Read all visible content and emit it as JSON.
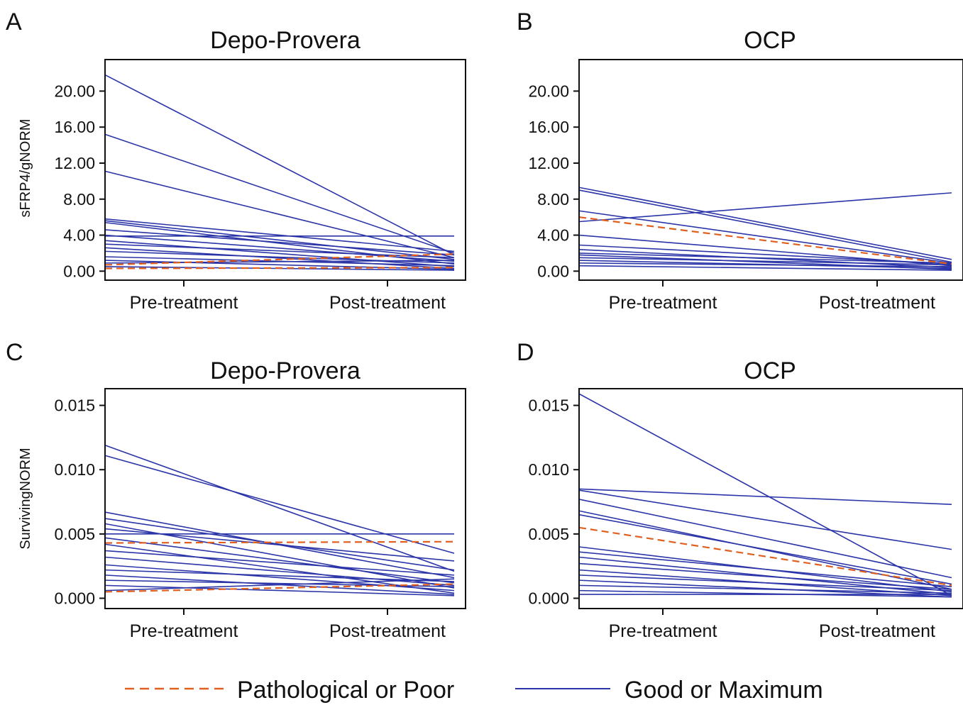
{
  "legend": {
    "items": [
      {
        "label": "Pathological or Poor",
        "style": "dashed",
        "color": "#e06020"
      },
      {
        "label": "Good or Maximum",
        "style": "solid",
        "color": "#2b35a8"
      }
    ]
  },
  "chart_data": [
    {
      "type": "line",
      "panel_letter": "A",
      "title": "Depo-Provera",
      "ylabel": "sFRP4/gNORM",
      "xlabel": "",
      "categories": [
        "Pre-treatment",
        "Post-treatment"
      ],
      "ylim": [
        -1.0,
        23.5
      ],
      "yticks": [
        "0.00",
        "4.00",
        "8.00",
        "12.00",
        "16.00",
        "20.00"
      ],
      "grid": false,
      "series": [
        {
          "group": "Good or Maximum",
          "values": [
            21.8,
            1.8
          ]
        },
        {
          "group": "Good or Maximum",
          "values": [
            15.2,
            2.0
          ]
        },
        {
          "group": "Good or Maximum",
          "values": [
            11.1,
            1.5
          ]
        },
        {
          "group": "Good or Maximum",
          "values": [
            5.8,
            2.2
          ]
        },
        {
          "group": "Good or Maximum",
          "values": [
            5.6,
            1.3
          ]
        },
        {
          "group": "Good or Maximum",
          "values": [
            5.4,
            0.8
          ]
        },
        {
          "group": "Good or Maximum",
          "values": [
            4.6,
            1.8
          ]
        },
        {
          "group": "Good or Maximum",
          "values": [
            4.0,
            1.1
          ]
        },
        {
          "group": "Good or Maximum",
          "values": [
            3.9,
            3.9
          ]
        },
        {
          "group": "Good or Maximum",
          "values": [
            3.4,
            0.5
          ]
        },
        {
          "group": "Good or Maximum",
          "values": [
            3.0,
            1.5
          ]
        },
        {
          "group": "Good or Maximum",
          "values": [
            2.6,
            0.3
          ]
        },
        {
          "group": "Good or Maximum",
          "values": [
            2.2,
            0.9
          ]
        },
        {
          "group": "Good or Maximum",
          "values": [
            1.6,
            0.6
          ]
        },
        {
          "group": "Good or Maximum",
          "values": [
            1.2,
            0.2
          ]
        },
        {
          "group": "Good or Maximum",
          "values": [
            0.9,
            1.2
          ]
        },
        {
          "group": "Good or Maximum",
          "values": [
            0.5,
            0.1
          ]
        },
        {
          "group": "Pathological or Poor",
          "values": [
            0.7,
            1.9
          ]
        },
        {
          "group": "Pathological or Poor",
          "values": [
            0.3,
            0.4
          ]
        }
      ]
    },
    {
      "type": "line",
      "panel_letter": "B",
      "title": "OCP",
      "ylabel": "",
      "xlabel": "",
      "categories": [
        "Pre-treatment",
        "Post-treatment"
      ],
      "ylim": [
        -1.0,
        23.5
      ],
      "yticks": [
        "0.00",
        "4.00",
        "8.00",
        "12.00",
        "16.00",
        "20.00"
      ],
      "grid": false,
      "series": [
        {
          "group": "Good or Maximum",
          "values": [
            9.3,
            1.3
          ]
        },
        {
          "group": "Good or Maximum",
          "values": [
            9.0,
            1.0
          ]
        },
        {
          "group": "Good or Maximum",
          "values": [
            6.7,
            0.9
          ]
        },
        {
          "group": "Good or Maximum",
          "values": [
            5.5,
            8.7
          ]
        },
        {
          "group": "Good or Maximum",
          "values": [
            4.0,
            0.6
          ]
        },
        {
          "group": "Good or Maximum",
          "values": [
            2.9,
            0.8
          ]
        },
        {
          "group": "Good or Maximum",
          "values": [
            2.4,
            0.4
          ]
        },
        {
          "group": "Good or Maximum",
          "values": [
            2.0,
            0.9
          ]
        },
        {
          "group": "Good or Maximum",
          "values": [
            1.8,
            0.2
          ]
        },
        {
          "group": "Good or Maximum",
          "values": [
            1.5,
            0.7
          ]
        },
        {
          "group": "Good or Maximum",
          "values": [
            1.2,
            0.3
          ]
        },
        {
          "group": "Good or Maximum",
          "values": [
            0.9,
            0.5
          ]
        },
        {
          "group": "Good or Maximum",
          "values": [
            0.6,
            0.1
          ]
        },
        {
          "group": "Pathological or Poor",
          "values": [
            6.0,
            0.8
          ]
        }
      ]
    },
    {
      "type": "line",
      "panel_letter": "C",
      "title": "Depo-Provera",
      "ylabel": "SurvivingNORM",
      "xlabel": "",
      "categories": [
        "Pre-treatment",
        "Post-treatment"
      ],
      "ylim": [
        -0.0008,
        0.0163
      ],
      "yticks": [
        "0.000",
        "0.005",
        "0.010",
        "0.015"
      ],
      "grid": false,
      "series": [
        {
          "group": "Good or Maximum",
          "values": [
            0.0119,
            0.0021
          ]
        },
        {
          "group": "Good or Maximum",
          "values": [
            0.0111,
            0.0035
          ]
        },
        {
          "group": "Good or Maximum",
          "values": [
            0.0067,
            0.0016
          ]
        },
        {
          "group": "Good or Maximum",
          "values": [
            0.0062,
            0.0022
          ]
        },
        {
          "group": "Good or Maximum",
          "values": [
            0.0058,
            0.0008
          ]
        },
        {
          "group": "Good or Maximum",
          "values": [
            0.0054,
            0.0029
          ]
        },
        {
          "group": "Good or Maximum",
          "values": [
            0.005,
            0.005
          ]
        },
        {
          "group": "Good or Maximum",
          "values": [
            0.0047,
            0.0012
          ]
        },
        {
          "group": "Good or Maximum",
          "values": [
            0.0042,
            0.0004
          ]
        },
        {
          "group": "Good or Maximum",
          "values": [
            0.0037,
            0.0018
          ]
        },
        {
          "group": "Good or Maximum",
          "values": [
            0.0032,
            0.001
          ]
        },
        {
          "group": "Good or Maximum",
          "values": [
            0.0026,
            0.0006
          ]
        },
        {
          "group": "Good or Maximum",
          "values": [
            0.0022,
            0.0013
          ]
        },
        {
          "group": "Good or Maximum",
          "values": [
            0.0018,
            0.0003
          ]
        },
        {
          "group": "Good or Maximum",
          "values": [
            0.0014,
            0.0009
          ]
        },
        {
          "group": "Good or Maximum",
          "values": [
            0.001,
            0.0002
          ]
        },
        {
          "group": "Good or Maximum",
          "values": [
            0.0006,
            0.0015
          ]
        },
        {
          "group": "Pathological or Poor",
          "values": [
            0.0043,
            0.0044
          ]
        },
        {
          "group": "Pathological or Poor",
          "values": [
            0.0005,
            0.0011
          ]
        }
      ]
    },
    {
      "type": "line",
      "panel_letter": "D",
      "title": "OCP",
      "ylabel": "",
      "xlabel": "",
      "categories": [
        "Pre-treatment",
        "Post-treatment"
      ],
      "ylim": [
        -0.0008,
        0.0163
      ],
      "yticks": [
        "0.000",
        "0.005",
        "0.010",
        "0.015"
      ],
      "grid": false,
      "series": [
        {
          "group": "Good or Maximum",
          "values": [
            0.0159,
            0.0002
          ]
        },
        {
          "group": "Good or Maximum",
          "values": [
            0.0085,
            0.0073
          ]
        },
        {
          "group": "Good or Maximum",
          "values": [
            0.0084,
            0.0038
          ]
        },
        {
          "group": "Good or Maximum",
          "values": [
            0.0077,
            0.0016
          ]
        },
        {
          "group": "Good or Maximum",
          "values": [
            0.0068,
            0.0007
          ]
        },
        {
          "group": "Good or Maximum",
          "values": [
            0.0065,
            0.0011
          ]
        },
        {
          "group": "Good or Maximum",
          "values": [
            0.004,
            0.0005
          ]
        },
        {
          "group": "Good or Maximum",
          "values": [
            0.0036,
            0.0009
          ]
        },
        {
          "group": "Good or Maximum",
          "values": [
            0.0032,
            0.0003
          ]
        },
        {
          "group": "Good or Maximum",
          "values": [
            0.0027,
            0.0007
          ]
        },
        {
          "group": "Good or Maximum",
          "values": [
            0.0022,
            0.0002
          ]
        },
        {
          "group": "Good or Maximum",
          "values": [
            0.0018,
            0.0006
          ]
        },
        {
          "group": "Good or Maximum",
          "values": [
            0.0014,
            0.0001
          ]
        },
        {
          "group": "Good or Maximum",
          "values": [
            0.001,
            0.0004
          ]
        },
        {
          "group": "Good or Maximum",
          "values": [
            0.0006,
            0.0001
          ]
        },
        {
          "group": "Good or Maximum",
          "values": [
            0.0003,
            0.0003
          ]
        },
        {
          "group": "Pathological or Poor",
          "values": [
            0.0055,
            0.001
          ]
        }
      ]
    }
  ]
}
